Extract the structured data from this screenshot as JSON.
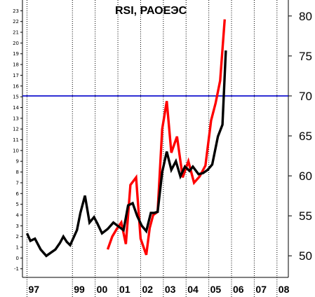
{
  "chart_data": {
    "type": "line",
    "title": "RSI, РАОЕЭС",
    "xlabel": "",
    "ylabel": "",
    "x_tick_labels": [
      "97",
      "99",
      "00",
      "01",
      "02",
      "03",
      "04",
      "05",
      "06",
      "07",
      "08"
    ],
    "x_tick_years": [
      1997,
      1999,
      2000,
      2001,
      2002,
      2003,
      2004,
      2005,
      2006,
      2007,
      2008
    ],
    "xlim": [
      1996.8,
      2008.5
    ],
    "left_axis": {
      "ylim": [
        -1.8,
        24
      ],
      "ticks": [
        -1,
        0,
        1,
        2,
        3,
        4,
        5,
        6,
        7,
        8,
        9,
        10,
        11,
        12,
        13,
        14,
        15,
        16,
        17,
        18,
        19,
        20,
        21,
        22,
        23
      ]
    },
    "right_axis": {
      "ylim": [
        47.3,
        82
      ],
      "ticks": [
        50,
        55,
        60,
        65,
        70,
        75,
        80
      ]
    },
    "reference_line": {
      "axis": "right",
      "value": 70,
      "color": "#0000cc"
    },
    "grid": {
      "vertical": true,
      "style": "dotted"
    },
    "legend": "none",
    "series": [
      {
        "axis": "left",
        "color": "#000000",
        "x": [
          1997.0,
          1997.15,
          1997.35,
          1997.6,
          1997.85,
          1998.05,
          1998.25,
          1998.45,
          1998.6,
          1998.75,
          1998.9,
          1999.05,
          1999.2,
          1999.35,
          1999.55,
          1999.75,
          1999.95,
          2000.1,
          2000.3,
          2000.55,
          2000.8,
          2001.05,
          2001.25,
          2001.45,
          2001.65,
          2001.85,
          2002.05,
          2002.25,
          2002.45,
          2002.6,
          2002.75,
          2002.95,
          2003.15,
          2003.35,
          2003.55,
          2003.75,
          2003.95,
          2004.15,
          2004.3,
          2004.55,
          2004.75,
          2004.95,
          2005.15,
          2005.4,
          2005.6,
          2005.75
        ],
        "values": [
          2.3,
          1.6,
          1.8,
          0.8,
          0.2,
          0.5,
          0.8,
          1.4,
          2.0,
          1.5,
          1.2,
          1.9,
          2.6,
          4.2,
          5.8,
          3.3,
          3.8,
          3.2,
          2.3,
          2.7,
          3.3,
          2.9,
          2.6,
          4.9,
          5.1,
          3.9,
          3.0,
          2.5,
          4.2,
          4.2,
          4.3,
          8.0,
          9.9,
          8.2,
          9.0,
          7.6,
          8.5,
          8.1,
          8.5,
          7.8,
          7.9,
          8.2,
          8.7,
          11.3,
          12.4,
          19.3
        ]
      },
      {
        "axis": "left",
        "color": "#ff0000",
        "x": [
          2000.55,
          2000.75,
          2000.95,
          2001.15,
          2001.35,
          2001.55,
          2001.8,
          2002.0,
          2002.25,
          2002.4,
          2002.55,
          2002.75,
          2002.95,
          2003.15,
          2003.35,
          2003.6,
          2003.85,
          2004.1,
          2004.35,
          2004.6,
          2004.85,
          2005.1,
          2005.3,
          2005.5,
          2005.7
        ],
        "values": [
          0.8,
          2.0,
          2.7,
          3.3,
          1.3,
          6.8,
          7.5,
          1.8,
          0.3,
          2.8,
          4.0,
          4.3,
          12.0,
          14.6,
          9.8,
          11.3,
          7.5,
          9.0,
          7.0,
          7.6,
          8.6,
          12.8,
          14.4,
          16.5,
          22.2
        ]
      }
    ]
  }
}
